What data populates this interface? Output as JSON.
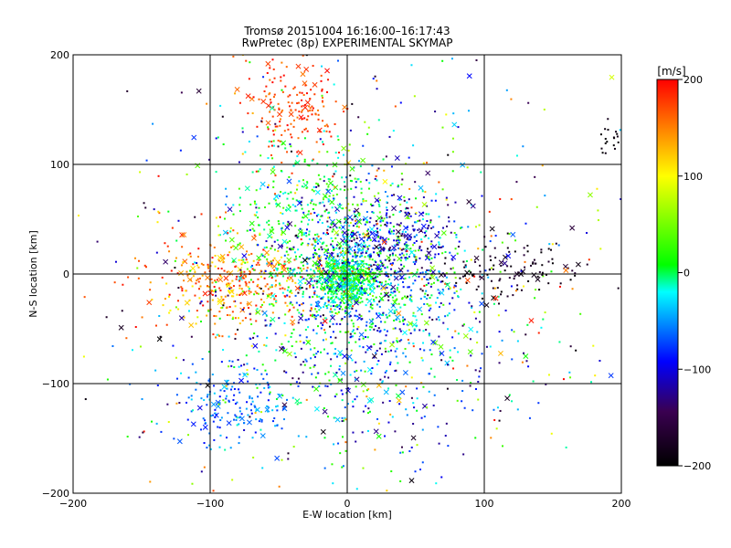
{
  "chart_data": {
    "type": "scatter",
    "title": "Tromsø 20151004 16:16:00–16:17:43",
    "subtitle": "RwPretec (8p) EXPERIMENTAL SKYMAP",
    "xlabel": "E-W location [km]",
    "ylabel": "N-S location [km]",
    "xlim": [
      -200,
      200
    ],
    "ylim": [
      -200,
      200
    ],
    "xticks": [
      -200,
      -100,
      0,
      100,
      200
    ],
    "yticks": [
      -200,
      -100,
      0,
      100,
      200
    ],
    "xtick_labels": [
      "−200",
      "−100",
      "0",
      "100",
      "200"
    ],
    "ytick_labels": [
      "−200",
      "−100",
      "0",
      "100",
      "200"
    ],
    "grid": true,
    "colorbar": {
      "label": "[m/s]",
      "min": -200,
      "max": 200,
      "ticks": [
        200,
        100,
        0,
        -100,
        -200
      ],
      "tick_labels": [
        "200",
        "100",
        "0",
        "−100",
        "−200"
      ],
      "colormap": [
        "#000000",
        "#3a0050",
        "#0000ff",
        "#00ffff",
        "#00ff00",
        "#ffff00",
        "#ff0000"
      ],
      "position": "right"
    },
    "clusters": [
      {
        "cx": 0,
        "cy": -5,
        "sx": 12,
        "sy": 12,
        "n": 500,
        "vmin": -40,
        "vmax": 40
      },
      {
        "cx": 15,
        "cy": 5,
        "sx": 38,
        "sy": 38,
        "n": 700,
        "vmin": -120,
        "vmax": 60
      },
      {
        "cx": 25,
        "cy": 30,
        "sx": 30,
        "sy": 22,
        "n": 280,
        "vmin": -160,
        "vmax": -70
      },
      {
        "cx": -40,
        "cy": 150,
        "sx": 18,
        "sy": 22,
        "n": 170,
        "vmin": 150,
        "vmax": 200
      },
      {
        "cx": -80,
        "cy": -8,
        "sx": 32,
        "sy": 22,
        "n": 360,
        "vmin": 100,
        "vmax": 200
      },
      {
        "cx": -30,
        "cy": 50,
        "sx": 30,
        "sy": 42,
        "n": 320,
        "vmin": -30,
        "vmax": 40
      },
      {
        "cx": -85,
        "cy": -120,
        "sx": 22,
        "sy": 22,
        "n": 160,
        "vmin": -90,
        "vmax": -30
      },
      {
        "cx": 115,
        "cy": 5,
        "sx": 30,
        "sy": 15,
        "n": 110,
        "vmin": -200,
        "vmax": -160
      },
      {
        "cx": 195,
        "cy": 120,
        "sx": 6,
        "sy": 10,
        "n": 25,
        "vmin": -200,
        "vmax": -180
      },
      {
        "cx": 10,
        "cy": -80,
        "sx": 55,
        "sy": 45,
        "n": 380,
        "vmin": -140,
        "vmax": 30
      },
      {
        "cx": 0,
        "cy": 0,
        "sx": 95,
        "sy": 95,
        "n": 700,
        "vmin": -200,
        "vmax": 200
      }
    ]
  }
}
